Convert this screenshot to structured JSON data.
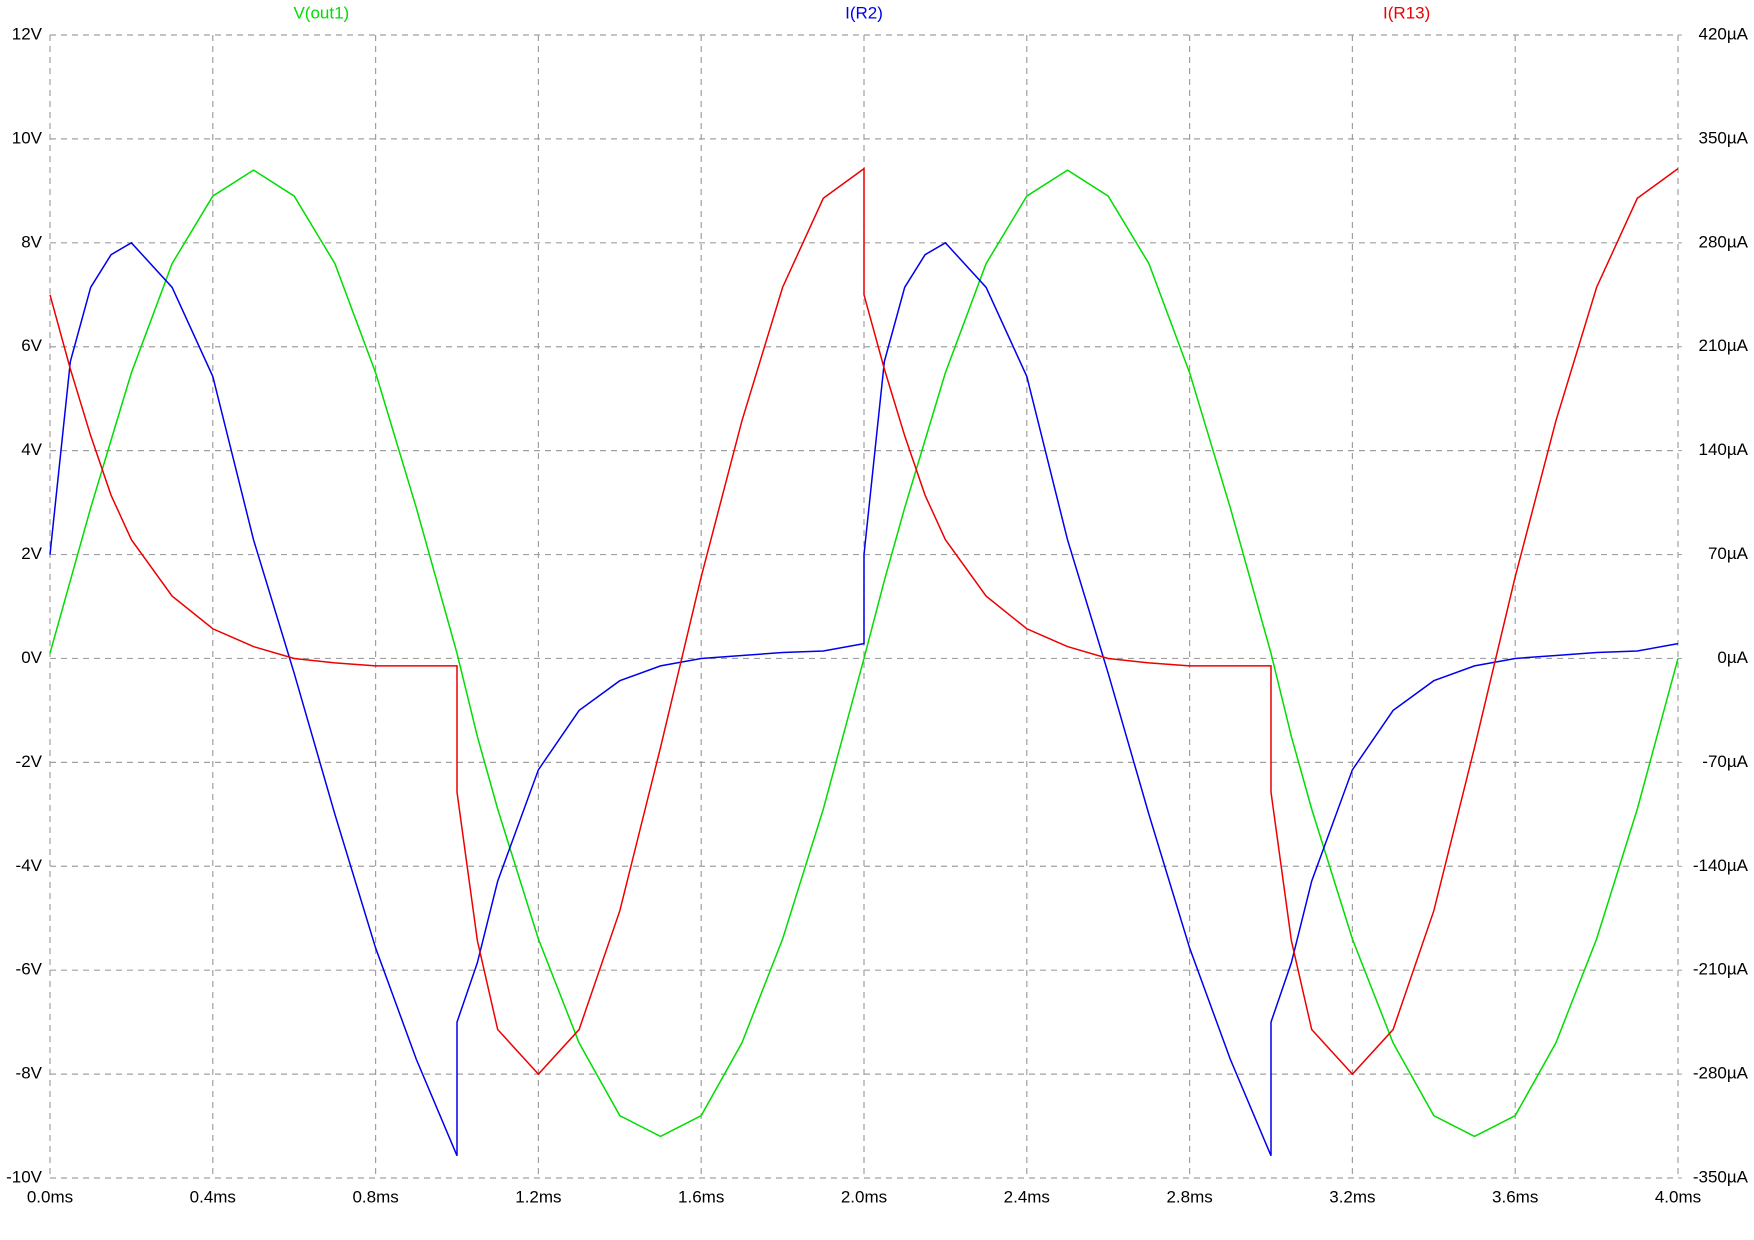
{
  "chart_data": {
    "type": "line",
    "x": [
      0,
      0.05,
      0.1,
      0.15,
      0.2,
      0.3,
      0.4,
      0.5,
      0.6,
      0.7,
      0.8,
      0.9,
      1.0,
      1.0,
      1.05,
      1.1,
      1.2,
      1.3,
      1.4,
      1.5,
      1.6,
      1.7,
      1.8,
      1.9,
      2.0,
      2.0,
      2.05,
      2.1,
      2.15,
      2.2,
      2.3,
      2.4,
      2.5,
      2.6,
      2.7,
      2.8,
      2.9,
      3.0,
      3.0,
      3.05,
      3.1,
      3.2,
      3.3,
      3.4,
      3.5,
      3.6,
      3.7,
      3.8,
      3.9,
      4.0
    ],
    "series": [
      {
        "name": "V(out1)",
        "color": "#00dd00",
        "axis": "y",
        "values": [
          0.1,
          1.5,
          2.9,
          4.2,
          5.5,
          7.6,
          8.9,
          9.4,
          8.9,
          7.6,
          5.5,
          2.9,
          0.1,
          0.1,
          -1.5,
          -2.9,
          -5.4,
          -7.4,
          -8.8,
          -9.2,
          -8.8,
          -7.4,
          -5.4,
          -2.9,
          0,
          0,
          1.5,
          2.9,
          4.2,
          5.5,
          7.6,
          8.9,
          9.4,
          8.9,
          7.6,
          5.5,
          2.9,
          0.1,
          0.1,
          -1.5,
          -2.9,
          -5.4,
          -7.4,
          -8.8,
          -9.2,
          -8.8,
          -7.4,
          -5.4,
          -2.9,
          0
        ]
      },
      {
        "name": "I(R2)",
        "color": "#0000ee",
        "axis": "y2",
        "values": [
          70,
          200,
          250,
          272,
          280,
          250,
          190,
          80,
          -10,
          -105,
          -195,
          -270,
          -335,
          -245,
          -205,
          -150,
          -75,
          -35,
          -15,
          -5,
          0,
          2,
          4,
          5,
          10,
          70,
          200,
          250,
          272,
          280,
          250,
          190,
          80,
          -10,
          -105,
          -195,
          -270,
          -335,
          -245,
          -205,
          -150,
          -75,
          -35,
          -15,
          -5,
          0,
          2,
          4,
          5,
          10
        ]
      },
      {
        "name": "I(R13)",
        "color": "#ee0000",
        "axis": "y2",
        "values": [
          245,
          195,
          150,
          110,
          80,
          42,
          20,
          8,
          0,
          -3,
          -5,
          -5,
          -5,
          -90,
          -190,
          -250,
          -280,
          -250,
          -170,
          -60,
          55,
          160,
          250,
          310,
          330,
          245,
          195,
          150,
          110,
          80,
          42,
          20,
          8,
          0,
          -3,
          -5,
          -5,
          -5,
          -90,
          -190,
          -250,
          -280,
          -250,
          -170,
          -60,
          55,
          160,
          250,
          310,
          330
        ]
      }
    ],
    "xlim": [
      0,
      4.0
    ],
    "xticks": [
      {
        "value": 0,
        "label": "0.0ms"
      },
      {
        "value": 0.4,
        "label": "0.4ms"
      },
      {
        "value": 0.8,
        "label": "0.8ms"
      },
      {
        "value": 1.2,
        "label": "1.2ms"
      },
      {
        "value": 1.6,
        "label": "1.6ms"
      },
      {
        "value": 2.0,
        "label": "2.0ms"
      },
      {
        "value": 2.4,
        "label": "2.4ms"
      },
      {
        "value": 2.8,
        "label": "2.8ms"
      },
      {
        "value": 3.2,
        "label": "3.2ms"
      },
      {
        "value": 3.6,
        "label": "3.6ms"
      },
      {
        "value": 4.0,
        "label": "4.0ms"
      }
    ],
    "ylim": [
      -10,
      12
    ],
    "yticks": [
      {
        "value": -10,
        "label": "-10V"
      },
      {
        "value": -8,
        "label": "-8V"
      },
      {
        "value": -6,
        "label": "-6V"
      },
      {
        "value": -4,
        "label": "-4V"
      },
      {
        "value": -2,
        "label": "-2V"
      },
      {
        "value": 0,
        "label": "0V"
      },
      {
        "value": 2,
        "label": "2V"
      },
      {
        "value": 4,
        "label": "4V"
      },
      {
        "value": 6,
        "label": "6V"
      },
      {
        "value": 8,
        "label": "8V"
      },
      {
        "value": 10,
        "label": "10V"
      },
      {
        "value": 12,
        "label": "12V"
      }
    ],
    "y2lim": [
      -350,
      420
    ],
    "y2ticks": [
      {
        "value": -350,
        "label": "-350µA"
      },
      {
        "value": -280,
        "label": "-280µA"
      },
      {
        "value": -210,
        "label": "-210µA"
      },
      {
        "value": -140,
        "label": "-140µA"
      },
      {
        "value": -70,
        "label": "-70µA"
      },
      {
        "value": 0,
        "label": "0µA"
      },
      {
        "value": 70,
        "label": "70µA"
      },
      {
        "value": 140,
        "label": "140µA"
      },
      {
        "value": 210,
        "label": "210µA"
      },
      {
        "value": 280,
        "label": "280µA"
      },
      {
        "value": 350,
        "label": "350µA"
      },
      {
        "value": 420,
        "label": "420µA"
      }
    ],
    "grid": true
  }
}
